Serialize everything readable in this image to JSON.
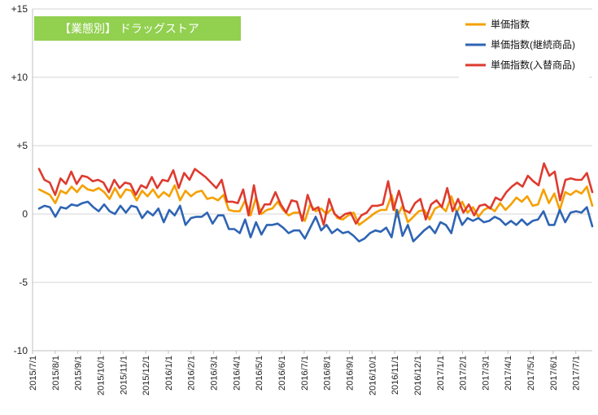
{
  "chart_data": {
    "type": "line",
    "title": "【業態別】 ドラッグストア",
    "title_bg": "#92D050",
    "ylim": [
      -10,
      15
    ],
    "y_ticks": [
      15,
      10,
      5,
      0,
      -5,
      -10
    ],
    "y_tick_labels": [
      "+15",
      "+10",
      "+5",
      "0",
      "-5",
      "-10"
    ],
    "grid": "horizontal",
    "legend_position": "top-right",
    "x_tick_labels": [
      "2015/7/1",
      "2015/8/1",
      "2015/9/1",
      "2015/10/1",
      "2015/11/1",
      "2015/12/1",
      "2016/1/1",
      "2016/2/1",
      "2016/3/1",
      "2016/4/1",
      "2016/5/1",
      "2016/6/1",
      "2016/7/1",
      "2016/8/1",
      "2016/9/1",
      "2016/10/1",
      "2016/11/1",
      "2016/12/1",
      "2017/1/1",
      "2017/2/1",
      "2017/3/1",
      "2017/4/1",
      "2017/5/1",
      "2017/6/1",
      "2017/7/1"
    ],
    "series": [
      {
        "name": "単価指数",
        "color": "#F5A000",
        "values": [
          1.8,
          1.6,
          1.4,
          0.8,
          1.7,
          1.5,
          2.0,
          1.6,
          2.1,
          1.8,
          1.7,
          1.9,
          1.6,
          1.1,
          1.9,
          1.2,
          1.8,
          1.7,
          1.0,
          1.7,
          1.3,
          1.8,
          1.2,
          1.6,
          1.3,
          2.1,
          1.0,
          1.7,
          1.3,
          1.6,
          1.7,
          1.1,
          1.2,
          1.0,
          1.4,
          0.3,
          0.2,
          0.2,
          1.0,
          -0.1,
          1.2,
          0.0,
          0.3,
          0.4,
          0.9,
          0.3,
          -0.1,
          0.1,
          0.1,
          -0.5,
          0.7,
          0.2,
          0.4,
          0.0,
          0.4,
          -0.3,
          -0.4,
          -0.1,
          0.1,
          -0.8,
          -0.5,
          -0.2,
          0.1,
          0.3,
          0.3,
          1.4,
          -0.2,
          0.6,
          -0.6,
          -0.2,
          0.2,
          0.3,
          -0.4,
          0.4,
          0.6,
          0.2,
          1.3,
          0.1,
          0.9,
          0.1,
          0.5,
          -0.2,
          0.3,
          0.5,
          0.2,
          0.8,
          0.3,
          0.7,
          1.2,
          0.9,
          1.3,
          0.6,
          0.7,
          1.8,
          0.8,
          1.5,
          0.3,
          1.6,
          1.4,
          1.7,
          1.5,
          2.0,
          0.6
        ]
      },
      {
        "name": "単価指数(継続商品)",
        "color": "#2E64B4",
        "values": [
          0.4,
          0.6,
          0.5,
          -0.2,
          0.5,
          0.4,
          0.7,
          0.6,
          0.8,
          0.9,
          0.5,
          0.2,
          0.7,
          0.2,
          0.0,
          0.6,
          0.1,
          0.6,
          0.5,
          -0.3,
          0.2,
          -0.1,
          0.4,
          -0.6,
          0.3,
          -0.1,
          0.6,
          -0.8,
          -0.3,
          -0.2,
          -0.2,
          0.1,
          -0.7,
          -0.1,
          -0.1,
          -1.1,
          -1.1,
          -1.4,
          -0.4,
          -1.7,
          -0.6,
          -1.5,
          -0.8,
          -0.8,
          -0.7,
          -1.0,
          -1.4,
          -1.2,
          -1.2,
          -1.8,
          -1.0,
          -0.2,
          -1.2,
          -0.8,
          -1.4,
          -1.1,
          -1.4,
          -1.3,
          -1.6,
          -2.0,
          -1.8,
          -1.4,
          -1.2,
          -1.3,
          -1.0,
          -1.7,
          0.3,
          -1.6,
          -0.8,
          -2.0,
          -1.6,
          -1.2,
          -0.9,
          -1.4,
          -0.6,
          -0.8,
          -1.4,
          0.2,
          -0.8,
          -0.3,
          -0.5,
          -0.3,
          -0.6,
          -0.5,
          -0.2,
          -0.4,
          -0.8,
          -0.5,
          -0.8,
          -0.4,
          -0.8,
          -0.5,
          -0.4,
          0.2,
          -0.8,
          -0.8,
          0.3,
          -0.6,
          0.1,
          0.2,
          0.1,
          0.5,
          -0.9
        ]
      },
      {
        "name": "単価指数(入替商品)",
        "color": "#DE3B2F",
        "values": [
          3.3,
          2.5,
          2.3,
          1.4,
          2.6,
          2.2,
          3.1,
          2.2,
          2.8,
          2.7,
          2.4,
          2.5,
          2.3,
          1.6,
          2.5,
          1.9,
          2.3,
          2.2,
          1.4,
          2.1,
          1.9,
          2.7,
          1.9,
          2.5,
          2.4,
          3.2,
          1.9,
          3.0,
          2.5,
          3.3,
          3.0,
          2.7,
          2.3,
          1.9,
          2.5,
          0.9,
          0.9,
          0.8,
          1.8,
          -0.1,
          2.1,
          0.0,
          0.7,
          0.7,
          1.6,
          0.7,
          0.1,
          1.0,
          0.9,
          -0.5,
          1.4,
          0.3,
          0.5,
          -0.8,
          1.1,
          0.0,
          -0.3,
          0.0,
          0.1,
          -0.7,
          -0.1,
          0.1,
          0.6,
          0.6,
          0.7,
          2.4,
          0.3,
          1.7,
          0.3,
          0.1,
          0.8,
          1.1,
          -0.4,
          0.7,
          1.0,
          0.5,
          1.9,
          0.2,
          1.1,
          0.1,
          0.7,
          -0.1,
          0.6,
          0.7,
          0.4,
          1.2,
          1.0,
          1.6,
          2.0,
          2.3,
          2.0,
          2.8,
          2.4,
          2.1,
          3.7,
          2.8,
          3.1,
          1.0,
          2.5,
          2.6,
          2.5,
          2.5,
          3.0,
          1.6
        ]
      }
    ]
  }
}
